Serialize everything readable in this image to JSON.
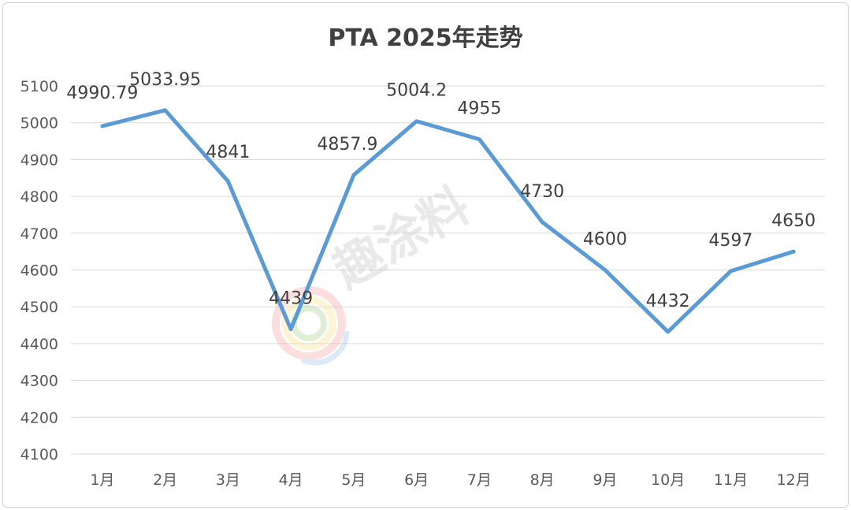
{
  "chart_data": {
    "type": "line",
    "title": "PTA 2025年走势",
    "xlabel": "",
    "ylabel": "",
    "categories": [
      "1月",
      "2月",
      "3月",
      "4月",
      "5月",
      "6月",
      "7月",
      "8月",
      "9月",
      "10月",
      "11月",
      "12月"
    ],
    "series": [
      {
        "values": [
          4990.79,
          5033.95,
          4841,
          4439,
          4857.9,
          5004.2,
          4955,
          4730,
          4600,
          4432,
          4597,
          4650
        ],
        "labels": [
          "4990.79",
          "5033.95",
          "4841",
          "4439",
          "4857.9",
          "5004.2",
          "4955",
          "4730",
          "4600",
          "4432",
          "4597",
          "4650"
        ],
        "color": "#5b9bd5"
      }
    ],
    "ylim": [
      4100,
      5100
    ],
    "yticks": [
      "4100",
      "4200",
      "4300",
      "4400",
      "4500",
      "4600",
      "4700",
      "4800",
      "4900",
      "5000",
      "5100"
    ],
    "grid": true,
    "legend": "none"
  },
  "watermark": {
    "text": "趣涂料",
    "logo": "colorful-ring-logo"
  }
}
